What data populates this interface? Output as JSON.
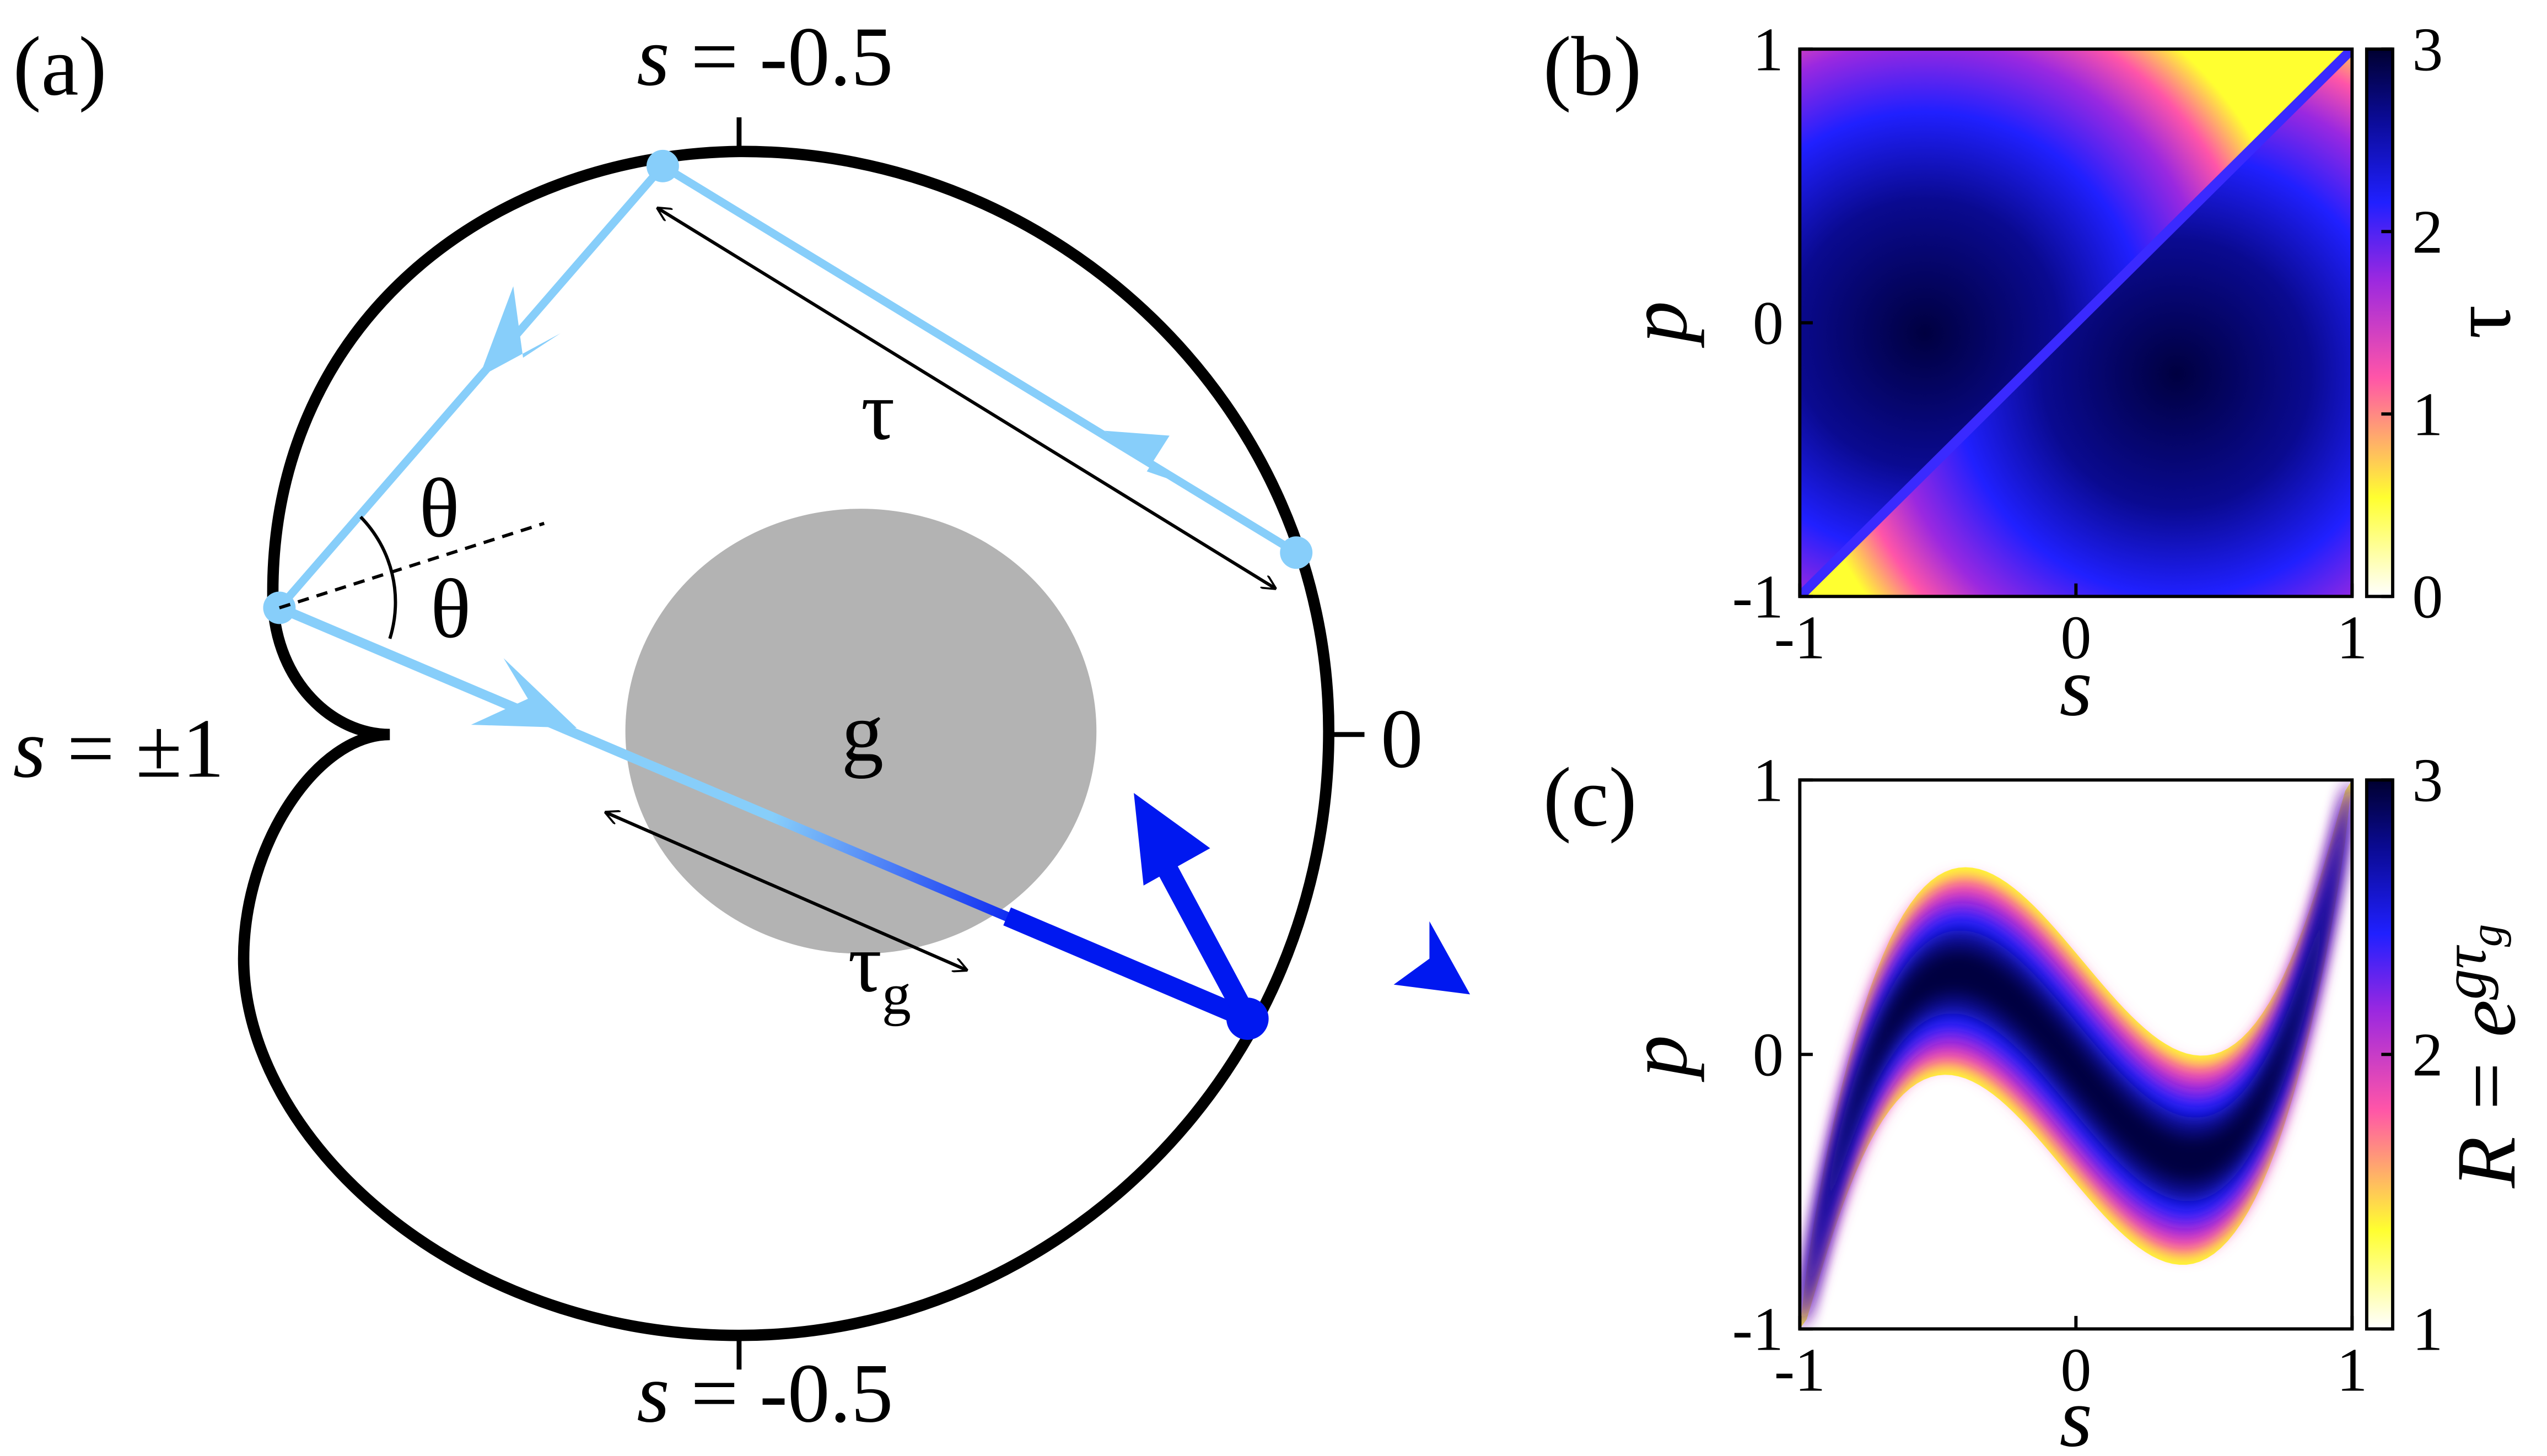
{
  "panel_a": {
    "label": "(a)",
    "top": {
      "var": "s",
      "text": " = -0.5"
    },
    "left": {
      "var": "s",
      "text": " = ±1"
    },
    "right": "0",
    "bottom": {
      "var": "s",
      "text": " = -0.5"
    },
    "tau": "τ",
    "theta_upper": "θ",
    "theta_lower": "θ",
    "gain": "g",
    "tau_g": {
      "text": "τ",
      "sub": "g"
    }
  },
  "panel_b": {
    "label": "(b)",
    "xlabel": "s",
    "ylabel": "p",
    "xticks": [
      -1,
      0,
      1
    ],
    "yticks": [
      -1,
      0,
      1
    ],
    "colorbar_label": "τ",
    "colorbar_ticks": [
      0,
      1,
      2,
      3
    ]
  },
  "panel_c": {
    "label": "(c)",
    "xlabel": "s",
    "ylabel": "p",
    "xticks": [
      -1,
      0,
      1
    ],
    "yticks": [
      -1,
      0,
      1
    ],
    "colorbar_label": {
      "base": "R = e",
      "exp": "gτ",
      "exp_sub": "g"
    },
    "colorbar_ticks": [
      1,
      2,
      3
    ]
  }
}
